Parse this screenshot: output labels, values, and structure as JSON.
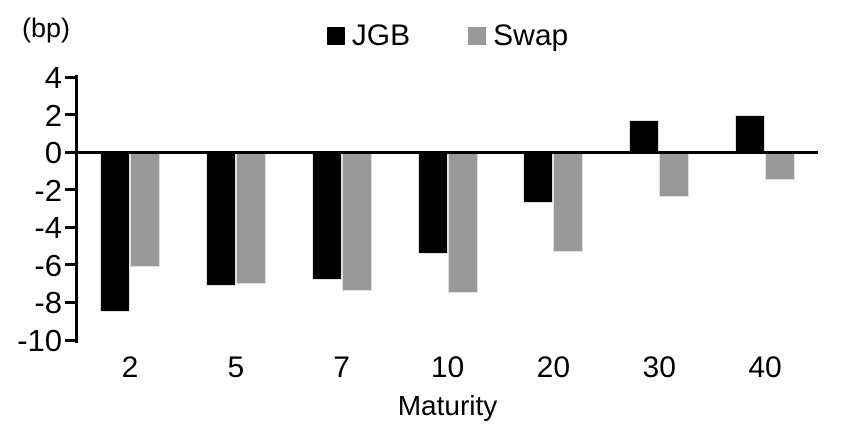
{
  "chart_data": {
    "type": "bar",
    "title": "",
    "categories": [
      "2",
      "5",
      "7",
      "10",
      "20",
      "30",
      "40"
    ],
    "series": [
      {
        "name": "JGB",
        "color": "#000000",
        "values": [
          -8.5,
          -7.1,
          -6.8,
          -5.4,
          -2.7,
          1.7,
          2.0
        ]
      },
      {
        "name": "Swap",
        "color": "#999999",
        "values": [
          -6.1,
          -7.0,
          -7.4,
          -7.5,
          -5.3,
          -2.4,
          -1.5
        ]
      }
    ],
    "xlabel": "Maturity",
    "ylabel": "(bp)",
    "ylim": [
      -10,
      4
    ],
    "yticks": [
      4,
      2,
      0,
      -2,
      -4,
      -6,
      -8,
      -10
    ],
    "legend_position": "top-center",
    "grid": false,
    "axis_color": "#000000",
    "background_color": "#ffffff"
  }
}
